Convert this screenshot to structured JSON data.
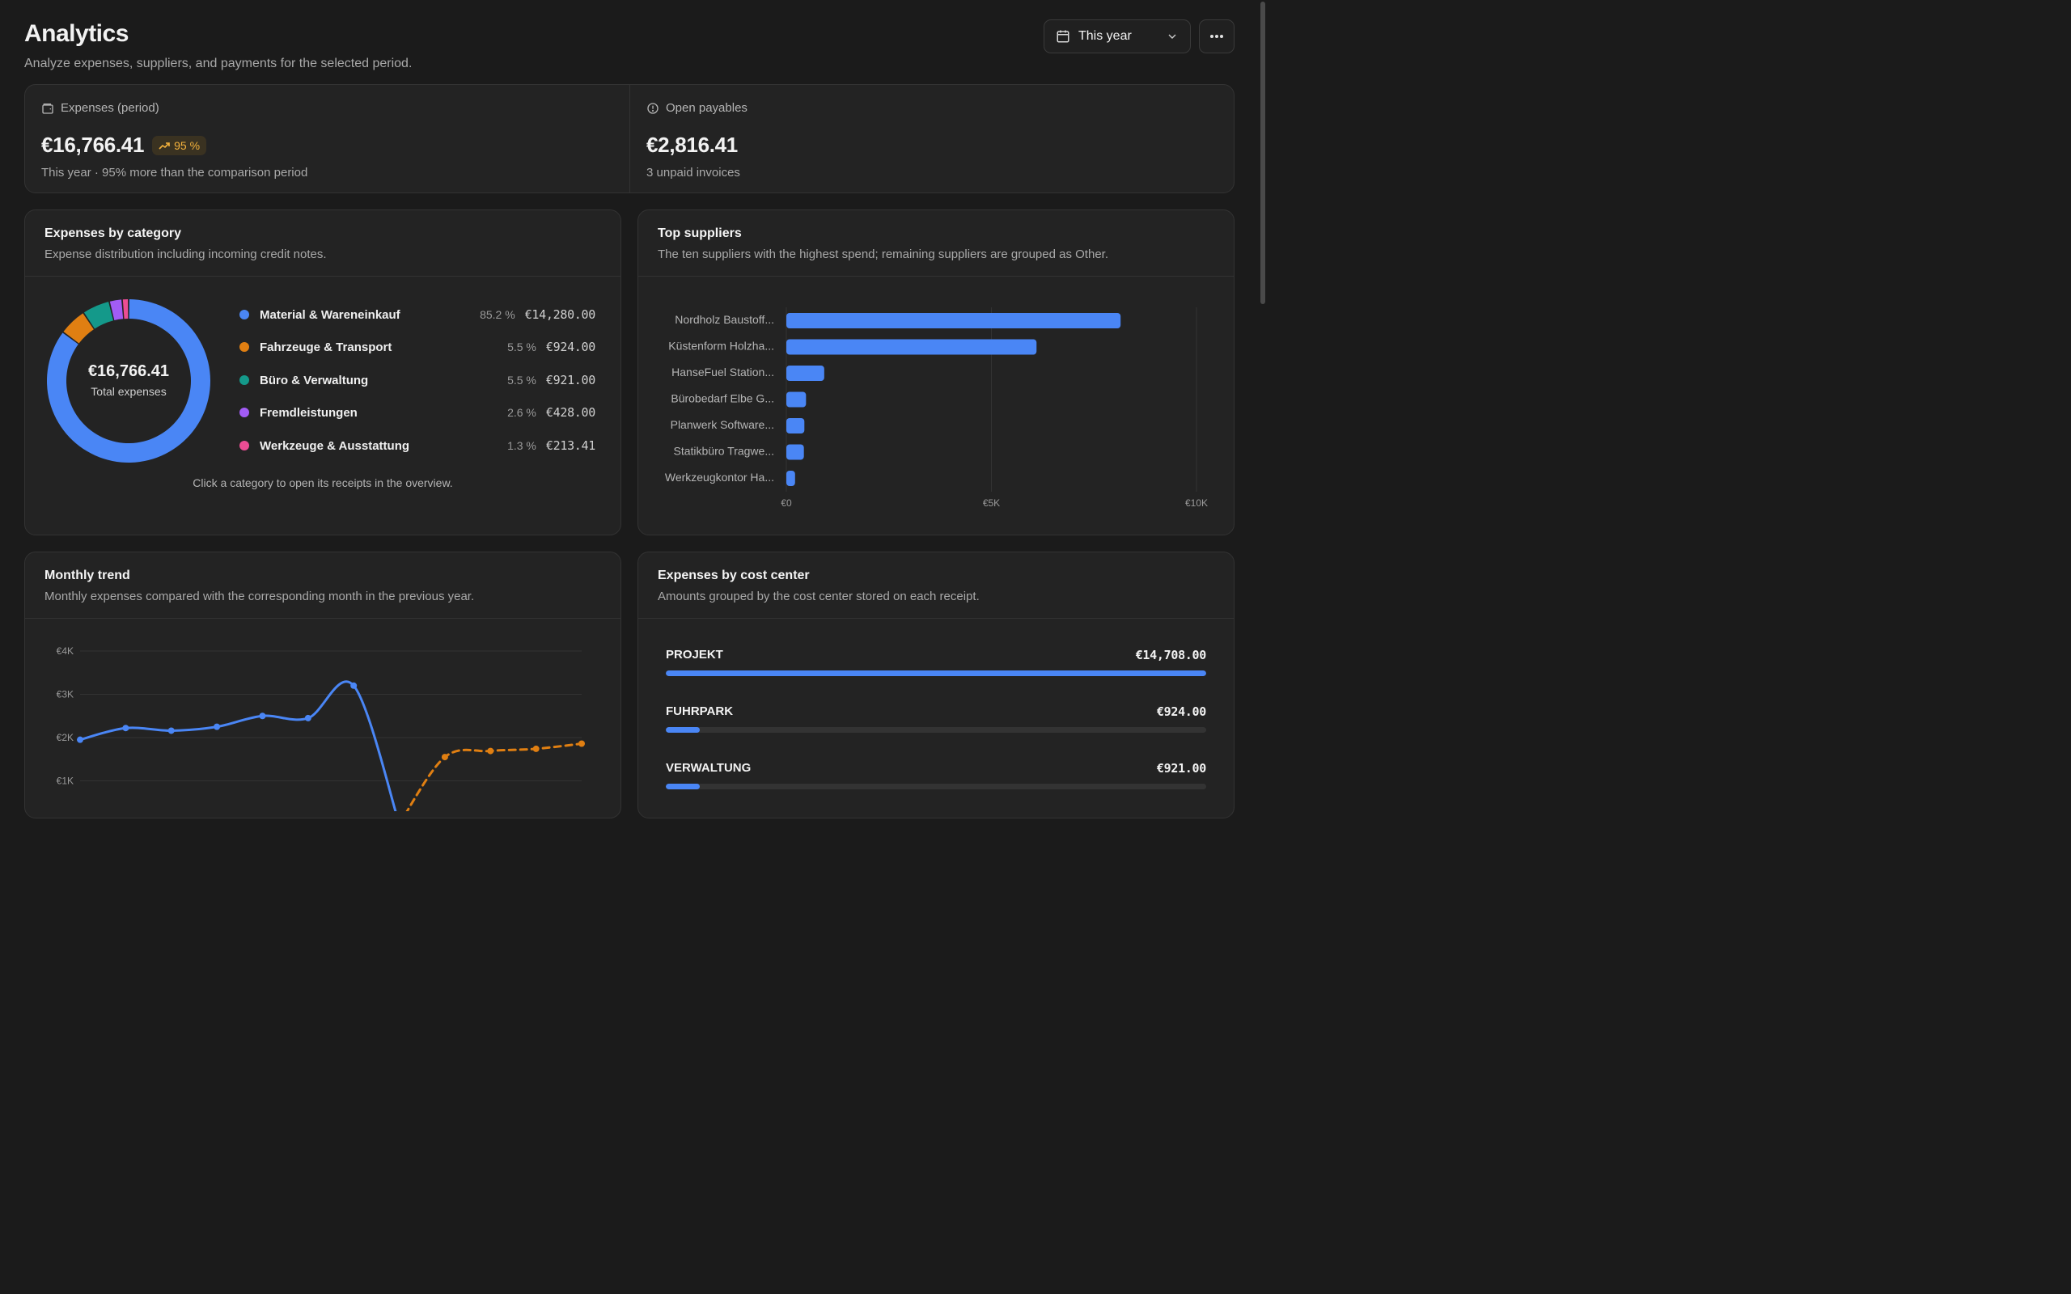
{
  "header": {
    "title": "Analytics",
    "subtitle": "Analyze expenses, suppliers, and payments for the selected period.",
    "period": "This year"
  },
  "kpis": {
    "expenses": {
      "label": "Expenses (period)",
      "value": "€16,766.41",
      "badge": "95 %",
      "note": "This year · 95% more than the comparison period"
    },
    "payables": {
      "label": "Open payables",
      "value": "€2,816.41",
      "note": "3 unpaid invoices"
    }
  },
  "category_card": {
    "title": "Expenses by category",
    "subtitle": "Expense distribution including incoming credit notes.",
    "center_value": "€16,766.41",
    "center_label": "Total expenses",
    "hint": "Click a category to open its receipts in the overview.",
    "items": [
      {
        "label": "Material & Wareneinkauf",
        "pct": "85.2 %",
        "amount": "€14,280.00",
        "color": "#4a86f5",
        "value": 14280.0
      },
      {
        "label": "Fahrzeuge & Transport",
        "pct": "5.5 %",
        "amount": "€924.00",
        "color": "#e07f12",
        "value": 924.0
      },
      {
        "label": "Büro & Verwaltung",
        "pct": "5.5 %",
        "amount": "€921.00",
        "color": "#14998a",
        "value": 921.0
      },
      {
        "label": "Fremdleistungen",
        "pct": "2.6 %",
        "amount": "€428.00",
        "color": "#a25cf5",
        "value": 428.0
      },
      {
        "label": "Werkzeuge & Ausstattung",
        "pct": "1.3 %",
        "amount": "€213.41",
        "color": "#ec4d94",
        "value": 213.41
      }
    ]
  },
  "suppliers_card": {
    "title": "Top suppliers",
    "subtitle": "The ten suppliers with the highest spend; remaining suppliers are grouped as Other."
  },
  "trend_card": {
    "title": "Monthly trend",
    "subtitle": "Monthly expenses compared with the corresponding month in the previous year."
  },
  "cost_center_card": {
    "title": "Expenses by cost center",
    "subtitle": "Amounts grouped by the cost center stored on each receipt.",
    "rows": [
      {
        "name": "PROJEKT",
        "amount": "€14,708.00",
        "value": 14708.0
      },
      {
        "name": "FUHRPARK",
        "amount": "€924.00",
        "value": 924.0
      },
      {
        "name": "VERWALTUNG",
        "amount": "€921.00",
        "value": 921.0
      }
    ]
  },
  "chart_data": [
    {
      "type": "pie",
      "categories": [
        "Material & Wareneinkauf",
        "Fahrzeuge & Transport",
        "Büro & Verwaltung",
        "Fremdleistungen",
        "Werkzeuge & Ausstattung"
      ],
      "values": [
        14280.0,
        924.0,
        921.0,
        428.0,
        213.41
      ]
    },
    {
      "type": "bar",
      "orientation": "horizontal",
      "categories": [
        "Nordholz Baustoff...",
        "Küstenform Holzha...",
        "HanseFuel Station...",
        "Bürobedarf Elbe G...",
        "Planwerk Software...",
        "Statikbüro Tragwe...",
        "Werkzeugkontor Ha..."
      ],
      "values": [
        8150,
        6100,
        924,
        480,
        440,
        428,
        213
      ],
      "xlim": [
        0,
        10000
      ],
      "xticks": [
        "€0",
        "€5K",
        "€10K"
      ],
      "grid": true
    },
    {
      "type": "line",
      "yticks": [
        "€4K",
        "€3K",
        "€2K",
        "€1K"
      ],
      "ylim": [
        0,
        4000
      ],
      "grid": true,
      "series": [
        {
          "values": [
            1950,
            2220,
            2160,
            2250,
            2500,
            2450,
            3200,
            0,
            null,
            null,
            null,
            null
          ],
          "color": "#4a86f5",
          "style": "solid"
        },
        {
          "values": [
            null,
            null,
            null,
            null,
            null,
            null,
            null,
            0,
            1550,
            1690,
            1740,
            1860
          ],
          "color": "#e07f12",
          "style": "dashed"
        }
      ]
    }
  ]
}
